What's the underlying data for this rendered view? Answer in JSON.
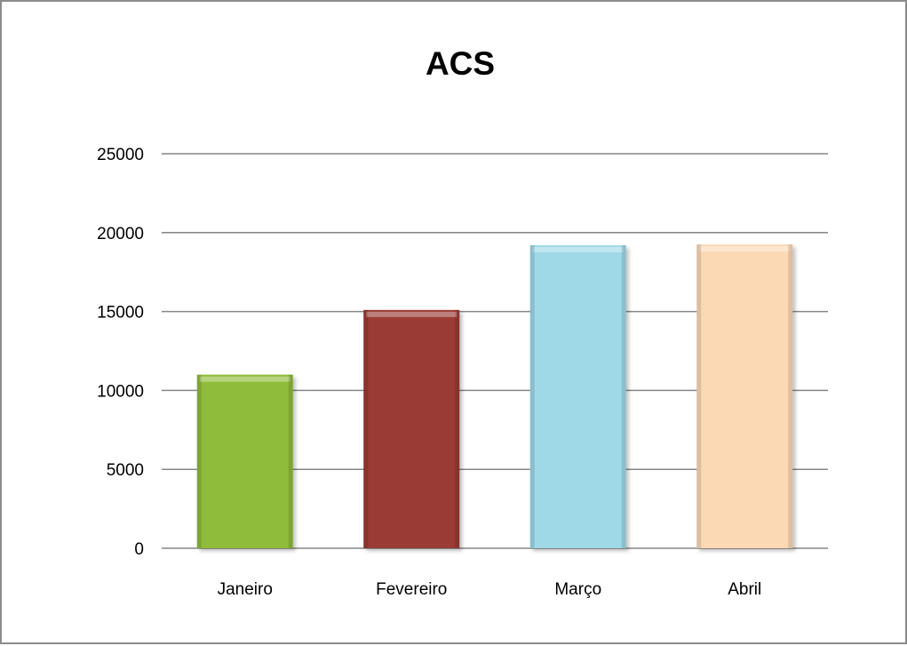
{
  "chart_data": {
    "type": "bar",
    "title": "ACS",
    "xlabel": "",
    "ylabel": "",
    "categories": [
      "Janeiro",
      "Fevereiro",
      "Março",
      "Abril"
    ],
    "values": [
      11000,
      15100,
      19200,
      19250
    ],
    "ylim": [
      0,
      25000
    ],
    "yticks": [
      0,
      5000,
      10000,
      15000,
      20000,
      25000
    ],
    "grid": true,
    "legend": "none",
    "bar_colors": [
      "#8fbc3a",
      "#9a3a36",
      "#9fd9e8",
      "#fcd9b5"
    ]
  }
}
